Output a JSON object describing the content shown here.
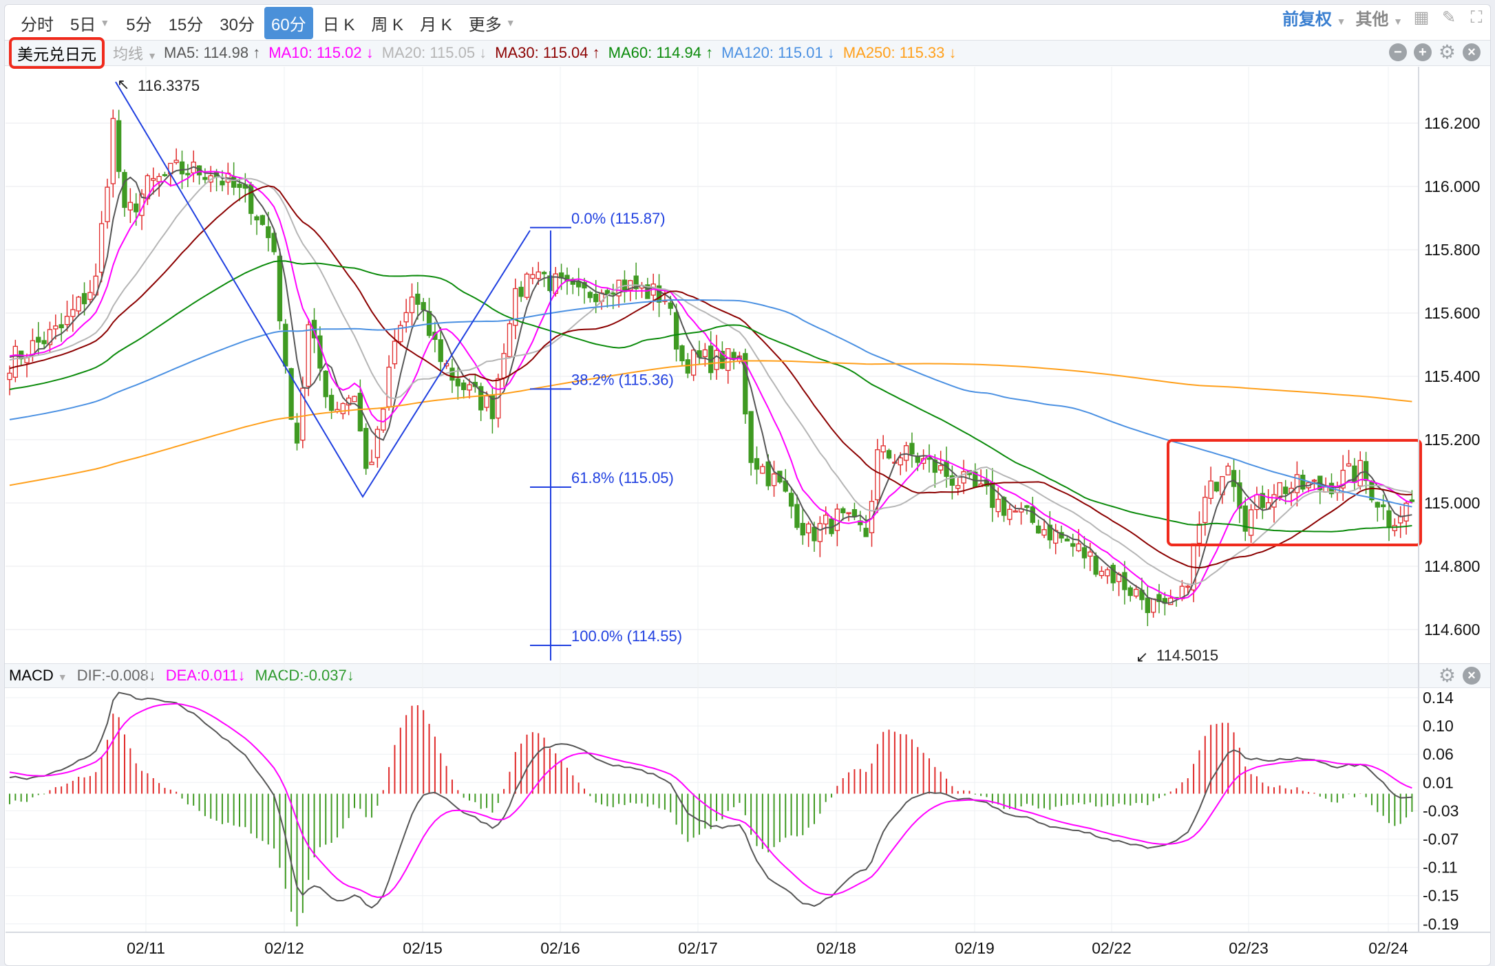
{
  "toolbar": {
    "tabs": [
      "分时",
      "5日",
      "5分",
      "15分",
      "30分",
      "60分",
      "日 K",
      "周 K",
      "月 K",
      "更多"
    ],
    "active": "60分",
    "adjust": "前复权",
    "other": "其他"
  },
  "symbol": "美元兑日元",
  "ma_selector": "均线",
  "ma": [
    {
      "label": "MA5: 114.98 ↑",
      "color": "#555555"
    },
    {
      "label": "MA10: 115.02 ↓",
      "color": "#ff00ff"
    },
    {
      "label": "MA20: 115.05 ↓",
      "color": "#b5b5b5"
    },
    {
      "label": "MA30: 115.04 ↑",
      "color": "#8b0000"
    },
    {
      "label": "MA60: 114.94 ↑",
      "color": "#0a8a0a"
    },
    {
      "label": "MA120: 115.01 ↓",
      "color": "#4a90e2"
    },
    {
      "label": "MA250: 115.33 ↓",
      "color": "#ff9f1a"
    }
  ],
  "macd": {
    "name": "MACD",
    "dif": "DIF:-0.008↓",
    "dea": "DEA:0.011↓",
    "macd": "MACD:-0.037↓"
  },
  "chart_data": {
    "type": "candlestick",
    "price_ticks": [
      "116.200",
      "116.000",
      "115.800",
      "115.600",
      "115.400",
      "115.200",
      "115.000",
      "114.800",
      "114.600"
    ],
    "macd_ticks": [
      "0.14",
      "0.10",
      "0.06",
      "0.01",
      "-0.03",
      "-0.07",
      "-0.11",
      "-0.15",
      "-0.19"
    ],
    "dates": [
      "02/11",
      "02/12",
      "02/15",
      "02/16",
      "02/17",
      "02/18",
      "02/19",
      "02/22",
      "02/23",
      "02/24"
    ],
    "high_label": "116.3375",
    "low_label": "114.5015",
    "fib": [
      {
        "label": "0.0% (115.87)",
        "price": 115.87
      },
      {
        "label": "38.2% (115.36)",
        "price": 115.36
      },
      {
        "label": "61.8% (115.05)",
        "price": 115.05
      },
      {
        "label": "100.0% (114.55)",
        "price": 114.55
      }
    ],
    "close_keypoints": [
      [
        0,
        115.45
      ],
      [
        9,
        115.55
      ],
      [
        15,
        115.7
      ],
      [
        18,
        116.2
      ],
      [
        20,
        115.9
      ],
      [
        24,
        116.0
      ],
      [
        29,
        116.05
      ],
      [
        35,
        116.05
      ],
      [
        42,
        115.95
      ],
      [
        46,
        115.8
      ],
      [
        48,
        115.4
      ],
      [
        50,
        115.2
      ],
      [
        52,
        115.55
      ],
      [
        56,
        115.3
      ],
      [
        60,
        115.35
      ],
      [
        62,
        115.1
      ],
      [
        64,
        115.2
      ],
      [
        67,
        115.5
      ],
      [
        70,
        115.65
      ],
      [
        74,
        115.5
      ],
      [
        77,
        115.4
      ],
      [
        80,
        115.35
      ],
      [
        84,
        115.3
      ],
      [
        87,
        115.6
      ],
      [
        91,
        115.75
      ],
      [
        94,
        115.7
      ],
      [
        99,
        115.65
      ],
      [
        105,
        115.7
      ],
      [
        114,
        115.65
      ],
      [
        117,
        115.45
      ],
      [
        122,
        115.45
      ],
      [
        127,
        115.45
      ],
      [
        129,
        115.15
      ],
      [
        134,
        115.05
      ],
      [
        139,
        114.9
      ],
      [
        144,
        114.95
      ],
      [
        149,
        114.9
      ],
      [
        151,
        115.15
      ],
      [
        157,
        115.15
      ],
      [
        162,
        115.1
      ],
      [
        167,
        115.05
      ],
      [
        174,
        114.98
      ],
      [
        182,
        114.9
      ],
      [
        190,
        114.8
      ],
      [
        197,
        114.7
      ],
      [
        201,
        114.65
      ],
      [
        204,
        114.7
      ],
      [
        208,
        115.0
      ],
      [
        212,
        115.15
      ],
      [
        215,
        114.95
      ],
      [
        220,
        115.05
      ],
      [
        228,
        115.05
      ],
      [
        235,
        115.1
      ],
      [
        240,
        114.95
      ],
      [
        244,
        115.0
      ]
    ]
  }
}
